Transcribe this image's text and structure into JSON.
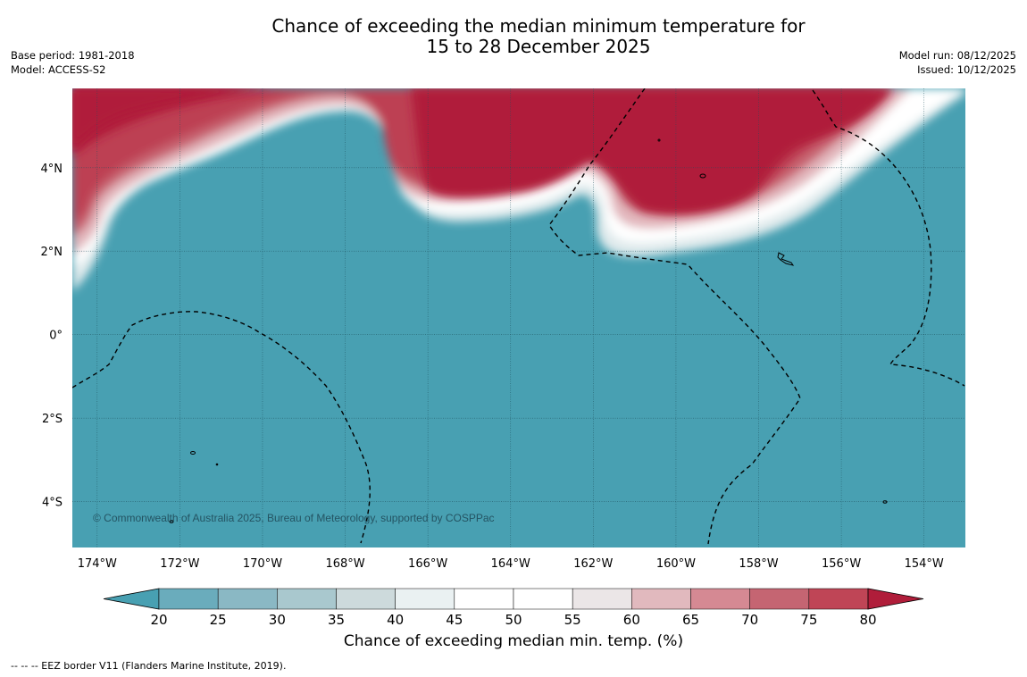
{
  "title": {
    "line1": "Chance of exceeding the median minimum temperature for",
    "line2": "15 to 28 December 2025"
  },
  "meta": {
    "base_period": "Base period: 1981-2018",
    "model": "Model: ACCESS-S2",
    "model_run": "Model run: 08/12/2025",
    "issued": "Issued: 10/12/2025"
  },
  "map": {
    "copyright": "© Commonwealth of Australia 2025, Bureau of Meteorology, supported by COSPPac",
    "lon_labels": [
      "174°W",
      "172°W",
      "170°W",
      "168°W",
      "166°W",
      "164°W",
      "162°W",
      "160°W",
      "158°W",
      "156°W",
      "154°W"
    ],
    "lat_labels": [
      "4°N",
      "2°N",
      "0°",
      "2°S",
      "4°S"
    ],
    "lon_values": [
      -174,
      -172,
      -170,
      -168,
      -166,
      -164,
      -162,
      -160,
      -158,
      -156,
      -154
    ],
    "lat_values": [
      4,
      2,
      0,
      -2,
      -4
    ],
    "extent": {
      "lon_min": -174.6,
      "lon_max": -153.0,
      "lat_min": -5.1,
      "lat_max": 5.9
    }
  },
  "colorbar": {
    "title": "Chance of exceeding median min. temp. (%)",
    "ticks": [
      "20",
      "25",
      "30",
      "35",
      "40",
      "45",
      "50",
      "55",
      "60",
      "65",
      "70",
      "75",
      "80"
    ],
    "colors": [
      "#48a0b2",
      "#6aacbc",
      "#8ab8c4",
      "#a9c8ce",
      "#cddadc",
      "#eaf1f2",
      "#ffffff",
      "#ffffff",
      "#ebe6e7",
      "#e1b9be",
      "#d58993",
      "#c56572",
      "#bf4556",
      "#b01d3a"
    ],
    "ocean_color": "#48a0b2",
    "warm_color": "#b01d3a"
  },
  "footnote": "--  --  -- EEZ border V11 (Flanders Marine Institute, 2019)."
}
